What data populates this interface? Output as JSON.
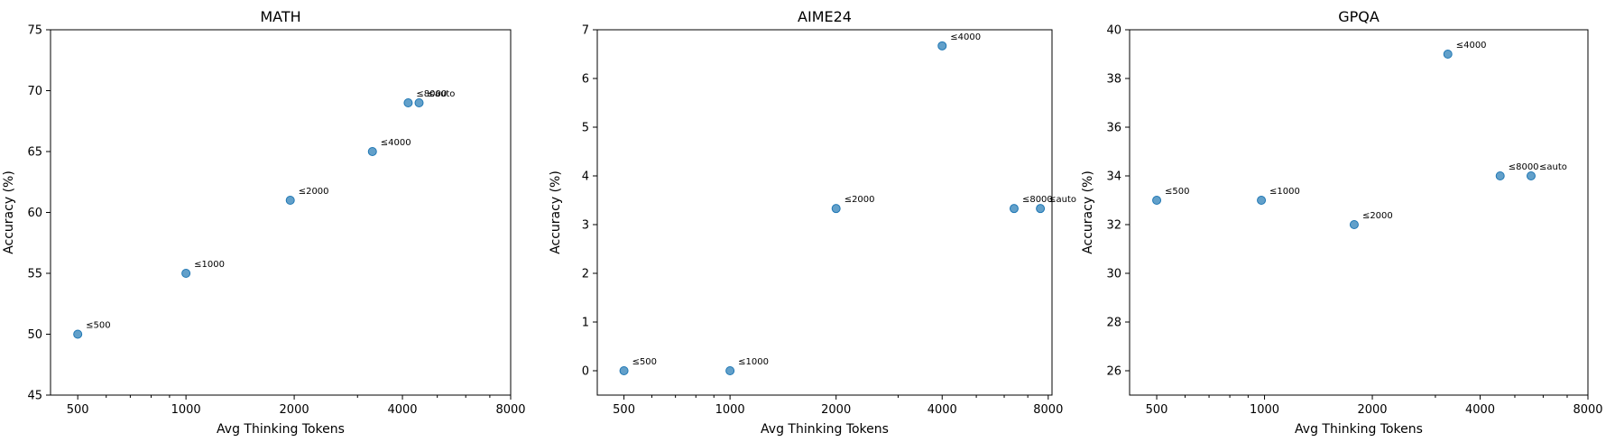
{
  "chart_data": [
    {
      "type": "scatter",
      "title": "MATH",
      "xlabel": "Avg Thinking Tokens",
      "ylabel": "Accuracy (%)",
      "xscale": "log2",
      "xlim": [
        420,
        8000
      ],
      "ylim": [
        45,
        75
      ],
      "xticks": [
        500,
        1000,
        2000,
        4000,
        8000
      ],
      "yticks": [
        45,
        50,
        55,
        60,
        65,
        70,
        75
      ],
      "grid": false,
      "points": [
        {
          "label": "≤500",
          "x": 500,
          "y": 50
        },
        {
          "label": "≤1000",
          "x": 1000,
          "y": 55
        },
        {
          "label": "≤2000",
          "x": 1950,
          "y": 61
        },
        {
          "label": "≤4000",
          "x": 3300,
          "y": 65
        },
        {
          "label": "≤8000",
          "x": 4150,
          "y": 69
        },
        {
          "label": "≤auto",
          "x": 4450,
          "y": 69
        }
      ]
    },
    {
      "type": "scatter",
      "title": "AIME24",
      "xlabel": "Avg Thinking Tokens",
      "ylabel": "Accuracy (%)",
      "xscale": "log2",
      "xlim": [
        420,
        8200
      ],
      "ylim": [
        -0.5,
        7
      ],
      "xticks": [
        500,
        1000,
        2000,
        4000,
        8000
      ],
      "yticks": [
        0,
        1,
        2,
        3,
        4,
        5,
        6,
        7
      ],
      "grid": false,
      "points": [
        {
          "label": "≤500",
          "x": 500,
          "y": 0
        },
        {
          "label": "≤1000",
          "x": 1000,
          "y": 0
        },
        {
          "label": "≤2000",
          "x": 2000,
          "y": 3.33
        },
        {
          "label": "≤4000",
          "x": 4000,
          "y": 6.67
        },
        {
          "label": "≤8000",
          "x": 6400,
          "y": 3.33
        },
        {
          "label": "≤auto",
          "x": 7600,
          "y": 3.33
        }
      ]
    },
    {
      "type": "scatter",
      "title": "GPQA",
      "xlabel": "Avg Thinking Tokens",
      "ylabel": "Accuracy (%)",
      "xscale": "log2",
      "xlim": [
        420,
        8000
      ],
      "ylim": [
        25,
        40
      ],
      "xticks": [
        500,
        1000,
        2000,
        4000,
        8000
      ],
      "yticks": [
        26,
        28,
        30,
        32,
        34,
        36,
        38,
        40
      ],
      "grid": false,
      "points": [
        {
          "label": "≤500",
          "x": 500,
          "y": 33
        },
        {
          "label": "≤1000",
          "x": 980,
          "y": 33
        },
        {
          "label": "≤2000",
          "x": 1780,
          "y": 32
        },
        {
          "label": "≤4000",
          "x": 3250,
          "y": 39
        },
        {
          "label": "≤8000",
          "x": 4550,
          "y": 34
        },
        {
          "label": "≤auto",
          "x": 5550,
          "y": 34
        }
      ]
    }
  ]
}
